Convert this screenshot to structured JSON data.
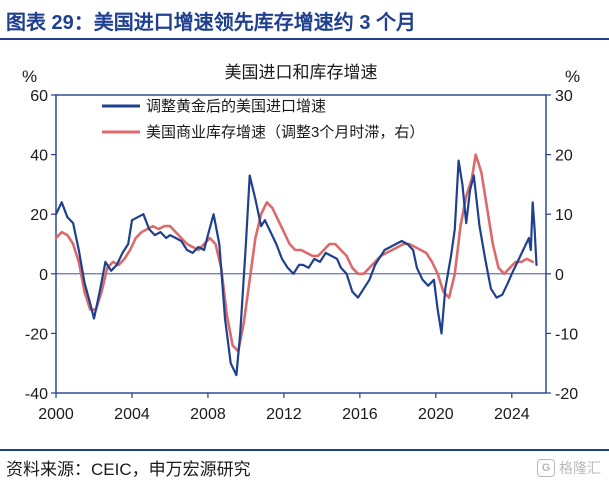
{
  "figure_title": "图表 29：美国进口增速领先库存增速约 3 个月",
  "source_text": "资料来源：CEIC，申万宏源研究",
  "watermark_text": "格隆汇",
  "watermark_logo": "G",
  "chart_data": {
    "type": "line",
    "title": "美国进口和库存增速",
    "left_unit": "%",
    "right_unit": "%",
    "x_ticks": [
      "2000",
      "2004",
      "2008",
      "2012",
      "2016",
      "2020",
      "2024"
    ],
    "x_range": [
      2000,
      2025.8
    ],
    "y_left_ticks": [
      "60",
      "40",
      "20",
      "0",
      "-20",
      "-40"
    ],
    "y_left_range": [
      -40,
      60
    ],
    "y_right_ticks": [
      "30",
      "20",
      "10",
      "0",
      "-10",
      "-20"
    ],
    "y_right_range": [
      -20,
      30
    ],
    "series": [
      {
        "name": "调整黄金后的美国进口增速",
        "axis": "left",
        "color": "#1f3f8f",
        "x": [
          2000.0,
          2000.3,
          2000.6,
          2000.9,
          2001.2,
          2001.5,
          2001.8,
          2002.0,
          2002.3,
          2002.6,
          2002.9,
          2003.2,
          2003.5,
          2003.8,
          2004.0,
          2004.3,
          2004.6,
          2004.9,
          2005.2,
          2005.5,
          2005.8,
          2006.0,
          2006.3,
          2006.6,
          2006.9,
          2007.2,
          2007.5,
          2007.8,
          2008.0,
          2008.3,
          2008.6,
          2008.9,
          2009.2,
          2009.5,
          2009.7,
          2010.0,
          2010.2,
          2010.5,
          2010.8,
          2011.0,
          2011.3,
          2011.6,
          2011.9,
          2012.2,
          2012.5,
          2012.8,
          2013.0,
          2013.3,
          2013.6,
          2013.9,
          2014.2,
          2014.5,
          2014.8,
          2015.0,
          2015.3,
          2015.6,
          2015.9,
          2016.2,
          2016.5,
          2016.8,
          2017.0,
          2017.3,
          2017.6,
          2017.9,
          2018.2,
          2018.5,
          2018.8,
          2019.0,
          2019.3,
          2019.6,
          2019.9,
          2020.1,
          2020.3,
          2020.5,
          2020.8,
          2021.0,
          2021.2,
          2021.4,
          2021.6,
          2021.8,
          2022.0,
          2022.3,
          2022.6,
          2022.9,
          2023.2,
          2023.5,
          2023.8,
          2024.0,
          2024.3,
          2024.6,
          2024.9,
          2025.0,
          2025.1,
          2025.2,
          2025.3
        ],
        "values": [
          20,
          24,
          19,
          17,
          8,
          -3,
          -10,
          -15,
          -6,
          4,
          1,
          3,
          7,
          10,
          18,
          19,
          20,
          15,
          13,
          14,
          12,
          13,
          12,
          11,
          8,
          7,
          9,
          8,
          13,
          20,
          10,
          -15,
          -30,
          -34,
          -20,
          10,
          33,
          25,
          16,
          18,
          14,
          10,
          5,
          2,
          0,
          3,
          3,
          2,
          5,
          4,
          7,
          6,
          5,
          2,
          0,
          -6,
          -8,
          -5,
          -2,
          3,
          5,
          8,
          9,
          10,
          11,
          10,
          8,
          2,
          -2,
          -4,
          -2,
          -12,
          -20,
          -5,
          6,
          15,
          38,
          30,
          17,
          28,
          33,
          16,
          5,
          -5,
          -8,
          -7,
          -3,
          0,
          4,
          8,
          12,
          8,
          24,
          15,
          3
        ]
      },
      {
        "name": "美国商业库存增速（调整3个月时滞，右）",
        "axis": "right",
        "color": "#dc6a6a",
        "x": [
          2000.0,
          2000.3,
          2000.6,
          2000.9,
          2001.2,
          2001.5,
          2001.8,
          2002.1,
          2002.4,
          2002.7,
          2003.0,
          2003.3,
          2003.6,
          2003.9,
          2004.2,
          2004.5,
          2004.8,
          2005.1,
          2005.4,
          2005.7,
          2006.0,
          2006.3,
          2006.6,
          2006.9,
          2007.2,
          2007.5,
          2007.8,
          2008.1,
          2008.4,
          2008.7,
          2009.0,
          2009.3,
          2009.6,
          2009.9,
          2010.2,
          2010.5,
          2010.8,
          2011.1,
          2011.4,
          2011.7,
          2012.0,
          2012.3,
          2012.6,
          2012.9,
          2013.2,
          2013.5,
          2013.8,
          2014.1,
          2014.4,
          2014.7,
          2015.0,
          2015.3,
          2015.6,
          2015.9,
          2016.2,
          2016.5,
          2016.8,
          2017.1,
          2017.4,
          2017.7,
          2018.0,
          2018.3,
          2018.6,
          2018.9,
          2019.2,
          2019.5,
          2019.8,
          2020.1,
          2020.4,
          2020.7,
          2021.0,
          2021.3,
          2021.6,
          2021.9,
          2022.1,
          2022.4,
          2022.7,
          2023.0,
          2023.3,
          2023.6,
          2023.9,
          2024.2,
          2024.5,
          2024.8,
          2025.1
        ],
        "values": [
          6,
          7,
          6.5,
          5,
          2,
          -3,
          -6,
          -6,
          -3,
          1,
          2,
          1.5,
          2.5,
          4,
          6,
          7,
          7.5,
          8,
          7.5,
          8,
          8,
          7,
          6,
          5,
          4.5,
          4,
          5,
          6,
          5,
          1,
          -7,
          -12,
          -13,
          -8,
          -1,
          6,
          10,
          12,
          11,
          9,
          7,
          5,
          4,
          4,
          3.5,
          3,
          3,
          4,
          5,
          5,
          4,
          3,
          1,
          0,
          0,
          1,
          2,
          3,
          3.5,
          4,
          4.5,
          5,
          5,
          4.5,
          4,
          3.5,
          2,
          0,
          -3,
          -4,
          0,
          8,
          13,
          16,
          20,
          17,
          11,
          5,
          1,
          0,
          1,
          2,
          2,
          2.5,
          2
        ]
      }
    ]
  }
}
